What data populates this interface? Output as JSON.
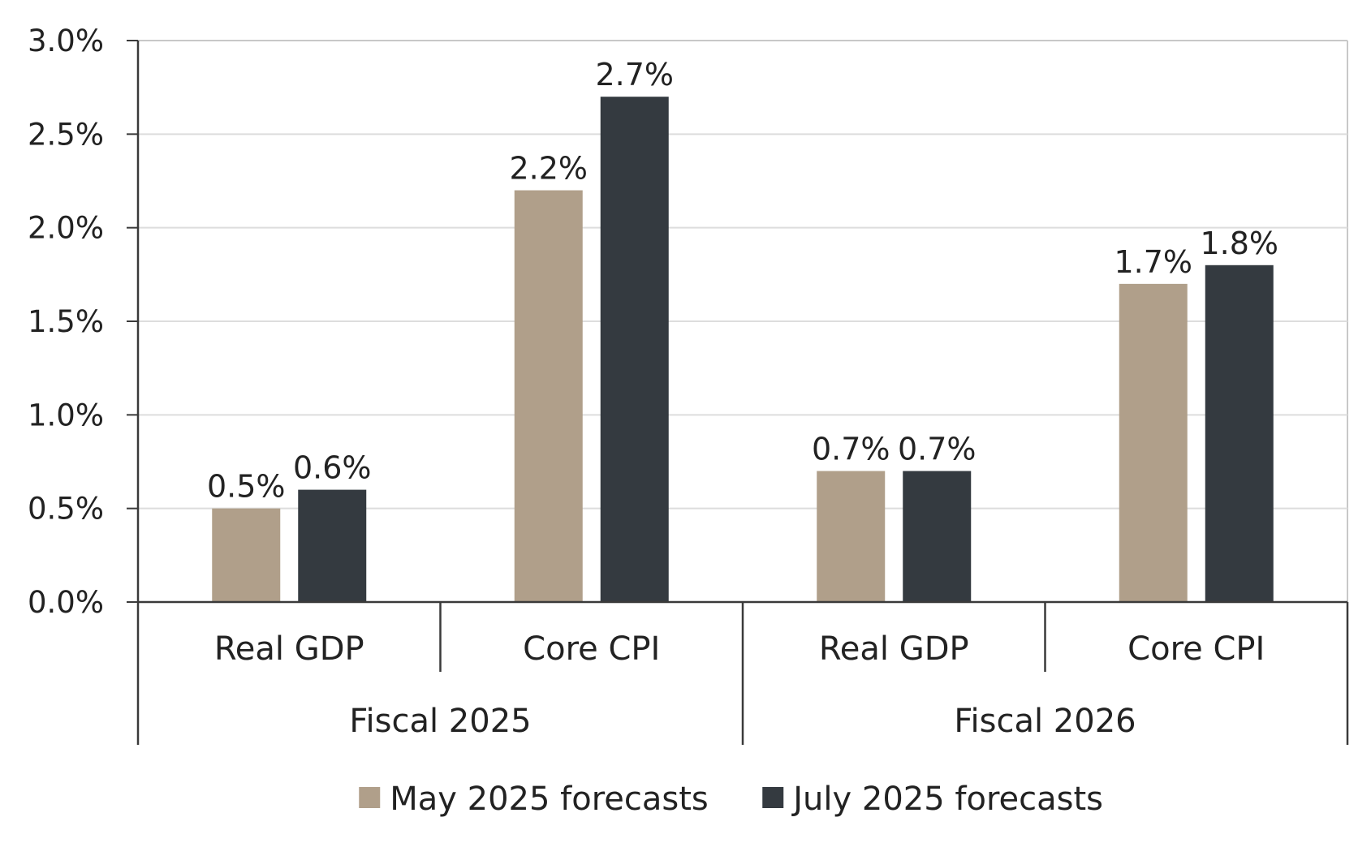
{
  "chart_data": {
    "type": "bar",
    "title": "",
    "xlabel": "",
    "ylabel": "",
    "ylim": [
      0,
      3.0
    ],
    "yticks": [
      0.0,
      0.5,
      1.0,
      1.5,
      2.0,
      2.5,
      3.0
    ],
    "ytick_labels": [
      "0.0%",
      "0.5%",
      "1.0%",
      "1.5%",
      "2.0%",
      "2.5%",
      "3.0%"
    ],
    "grid": "horizontal",
    "groups": [
      {
        "label": "Fiscal 2025",
        "categories": [
          "Real GDP",
          "Core CPI"
        ]
      },
      {
        "label": "Fiscal 2026",
        "categories": [
          "Real GDP",
          "Core CPI"
        ]
      }
    ],
    "categories": [
      "Real GDP",
      "Core CPI",
      "Real GDP",
      "Core CPI"
    ],
    "series": [
      {
        "name": "May 2025 forecasts",
        "color": "#b09f8a",
        "values": [
          0.5,
          2.2,
          0.7,
          1.7
        ],
        "labels": [
          "0.5%",
          "2.2%",
          "0.7%",
          "1.7%"
        ]
      },
      {
        "name": "July 2025 forecasts",
        "color": "#343a40",
        "values": [
          0.6,
          2.7,
          0.7,
          1.8
        ],
        "labels": [
          "0.6%",
          "2.7%",
          "0.7%",
          "1.8%"
        ]
      }
    ],
    "legend_position": "bottom-center"
  },
  "colors": {
    "axis": "#3a3a3a",
    "grid": "#dddddd",
    "frame": "#c8c8c8"
  }
}
